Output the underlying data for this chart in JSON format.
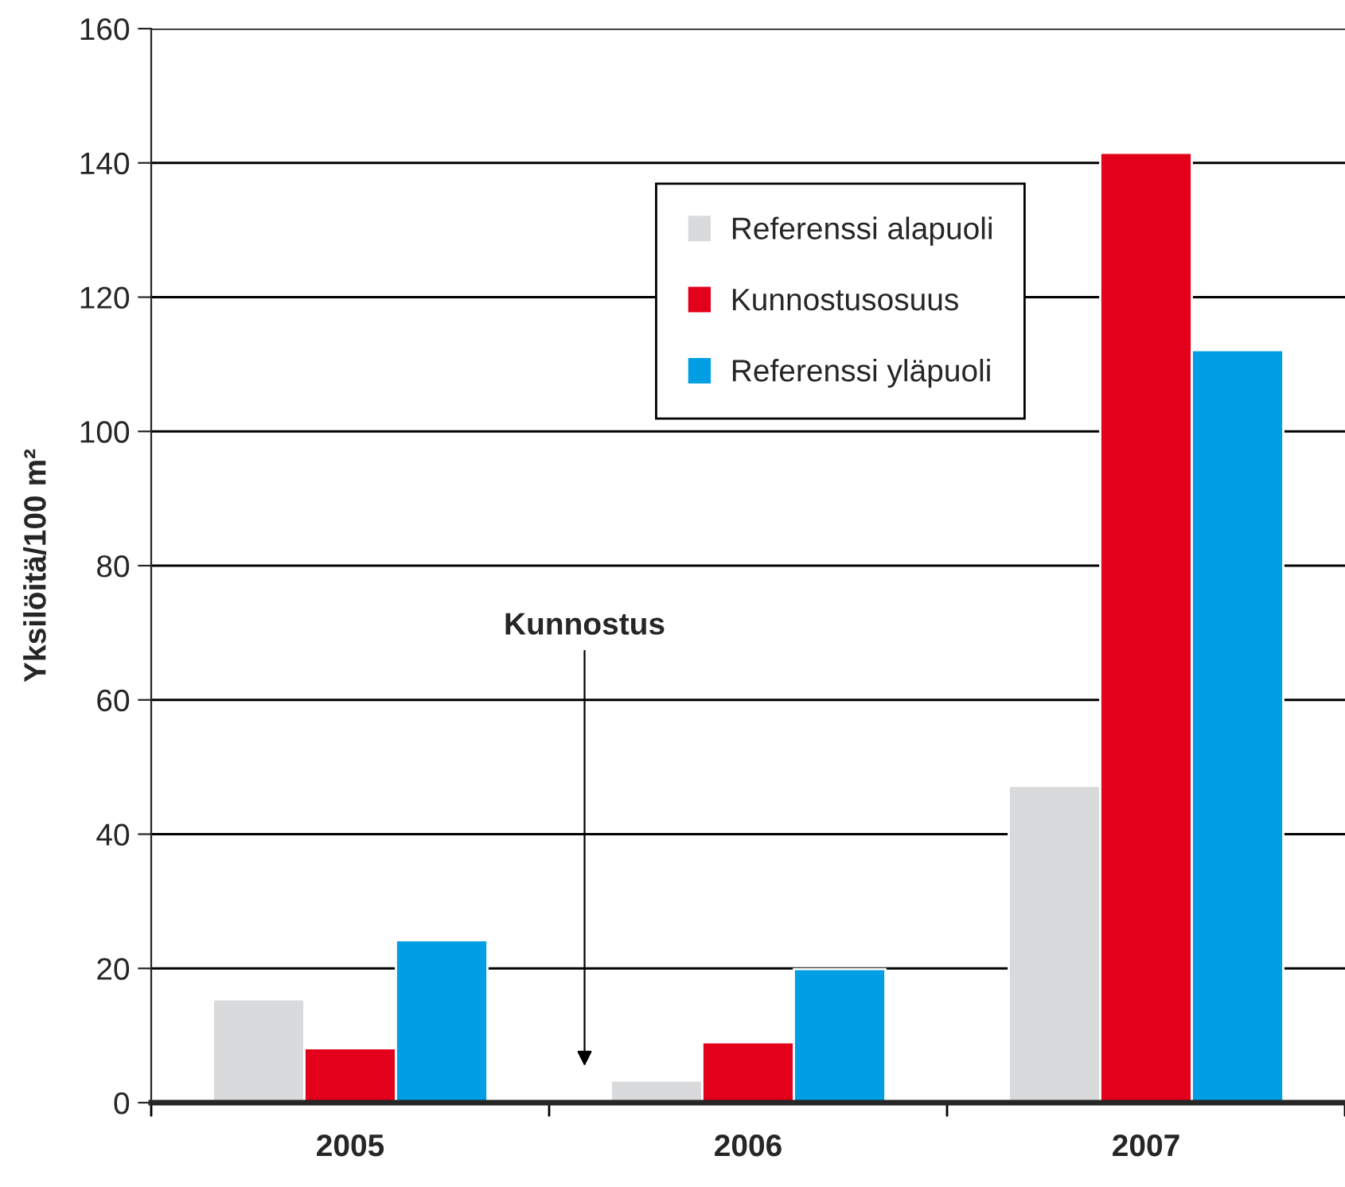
{
  "chart_data": {
    "type": "bar",
    "ylabel": "Yksilöitä/100 m²",
    "categories": [
      "2005",
      "2006",
      "2007"
    ],
    "series": [
      {
        "name": "Referenssi alapuoli",
        "color": "#d9dadc",
        "values": [
          15.4,
          3.3,
          47.2
        ]
      },
      {
        "name": "Kunnostusosuus",
        "color": "#e2001a",
        "values": [
          8.1,
          9.0,
          141.5
        ]
      },
      {
        "name": "Referenssi yläpuoli",
        "color": "#009fe3",
        "values": [
          24.2,
          19.9,
          112.1
        ]
      }
    ],
    "ylim": [
      0,
      160
    ],
    "yticks": [
      0,
      20,
      40,
      60,
      80,
      100,
      120,
      140,
      160
    ],
    "grid": "y",
    "legend": "top",
    "annotations": [
      "Kunnostus"
    ]
  }
}
